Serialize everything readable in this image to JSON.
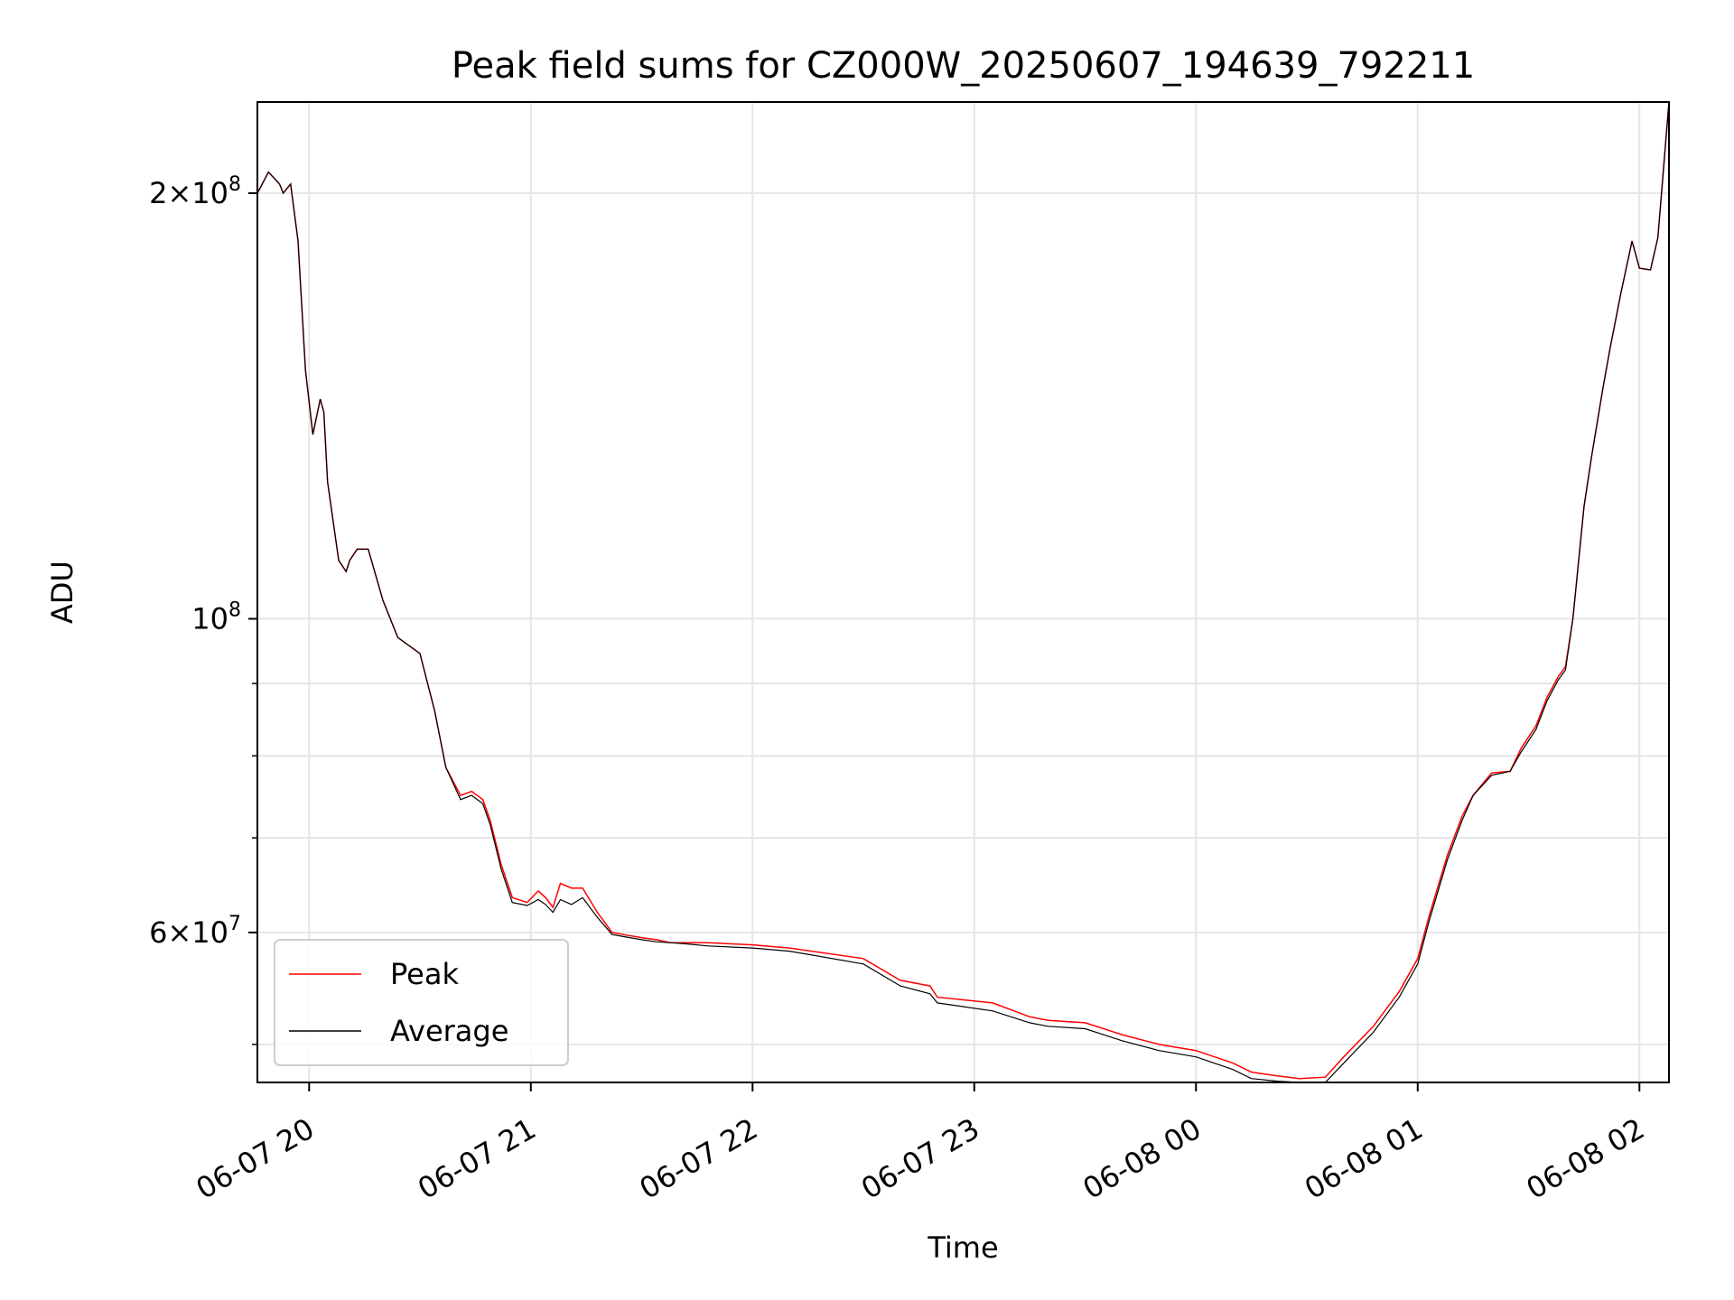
{
  "chart_data": {
    "type": "line",
    "title": "Peak field sums for CZ000W_20250607_194639_792211",
    "xlabel": "Time",
    "ylabel": "ADU",
    "y_scale": "log",
    "grid": true,
    "legend_position": "lower-left",
    "xlim": [
      "2025-06-07 19:46",
      "2025-06-08 02:08"
    ],
    "ylim": [
      47000000,
      232000000
    ],
    "x_ticks": [
      "06-07 20",
      "06-07 21",
      "06-07 22",
      "06-07 23",
      "06-08 00",
      "06-08 01",
      "06-08 02"
    ],
    "y_tick_labels": {
      "major": [
        {
          "value": 200000000,
          "mant": "2",
          "sep": "×",
          "base": "10",
          "exp": "8"
        },
        {
          "value": 100000000,
          "mant": "",
          "sep": "",
          "base": "10",
          "exp": "8"
        },
        {
          "value": 60000000,
          "mant": "6",
          "sep": "×",
          "base": "10",
          "exp": "7"
        }
      ],
      "minor_values": [
        50000000,
        70000000,
        80000000,
        90000000
      ]
    },
    "series": [
      {
        "name": "Peak",
        "color": "#ff0000",
        "x": [
          "2025-06-07 19:46",
          "2025-06-07 19:49",
          "2025-06-07 19:52",
          "2025-06-07 19:53",
          "2025-06-07 19:55",
          "2025-06-07 19:57",
          "2025-06-07 19:59",
          "2025-06-07 20:01",
          "2025-06-07 20:03",
          "2025-06-07 20:04",
          "2025-06-07 20:05",
          "2025-06-07 20:08",
          "2025-06-07 20:10",
          "2025-06-07 20:11",
          "2025-06-07 20:13",
          "2025-06-07 20:16",
          "2025-06-07 20:20",
          "2025-06-07 20:24",
          "2025-06-07 20:30",
          "2025-06-07 20:34",
          "2025-06-07 20:37",
          "2025-06-07 20:41",
          "2025-06-07 20:44",
          "2025-06-07 20:47",
          "2025-06-07 20:49",
          "2025-06-07 20:52",
          "2025-06-07 20:55",
          "2025-06-07 20:59",
          "2025-06-07 21:02",
          "2025-06-07 21:04",
          "2025-06-07 21:06",
          "2025-06-07 21:08",
          "2025-06-07 21:11",
          "2025-06-07 21:14",
          "2025-06-07 21:18",
          "2025-06-07 21:22",
          "2025-06-07 21:25",
          "2025-06-07 21:30",
          "2025-06-07 21:34",
          "2025-06-07 21:38",
          "2025-06-07 21:42",
          "2025-06-07 21:48",
          "2025-06-07 22:00",
          "2025-06-07 22:10",
          "2025-06-07 22:30",
          "2025-06-07 22:40",
          "2025-06-07 22:48",
          "2025-06-07 22:50",
          "2025-06-07 23:05",
          "2025-06-07 23:15",
          "2025-06-07 23:20",
          "2025-06-07 23:30",
          "2025-06-07 23:40",
          "2025-06-07 23:50",
          "2025-06-08 00:00",
          "2025-06-08 00:10",
          "2025-06-08 00:15",
          "2025-06-08 00:22",
          "2025-06-08 00:28",
          "2025-06-08 00:35",
          "2025-06-08 00:40",
          "2025-06-08 00:48",
          "2025-06-08 00:55",
          "2025-06-08 01:00",
          "2025-06-08 01:03",
          "2025-06-08 01:08",
          "2025-06-08 01:12",
          "2025-06-08 01:15",
          "2025-06-08 01:20",
          "2025-06-08 01:25",
          "2025-06-08 01:28",
          "2025-06-08 01:32",
          "2025-06-08 01:35",
          "2025-06-08 01:38",
          "2025-06-08 01:40",
          "2025-06-08 01:42",
          "2025-06-08 01:45",
          "2025-06-08 01:47",
          "2025-06-08 01:50",
          "2025-06-08 01:52",
          "2025-06-08 01:55",
          "2025-06-08 01:58",
          "2025-06-08 02:00",
          "2025-06-08 02:03",
          "2025-06-08 02:05",
          "2025-06-08 02:08"
        ],
        "y": [
          200000000,
          207000000,
          203000000,
          200000000,
          203000000,
          185000000,
          150000000,
          135000000,
          143000000,
          140000000,
          125000000,
          110000000,
          108000000,
          110000000,
          112000000,
          112000000,
          103000000,
          97000000,
          94500000,
          86000000,
          78500000,
          75000000,
          75500000,
          74500000,
          72000000,
          67000000,
          63500000,
          63000000,
          64200000,
          63500000,
          62500000,
          65000000,
          64500000,
          64500000,
          62000000,
          60000000,
          59800000,
          59500000,
          59300000,
          59000000,
          59000000,
          59000000,
          58800000,
          58500000,
          57500000,
          55500000,
          55000000,
          54000000,
          53500000,
          52300000,
          52000000,
          51800000,
          50800000,
          50000000,
          49500000,
          48500000,
          47800000,
          47500000,
          47300000,
          47400000,
          49000000,
          51500000,
          54500000,
          57500000,
          61500000,
          68000000,
          72500000,
          75000000,
          77800000,
          78000000,
          81000000,
          84000000,
          88000000,
          91000000,
          92500000,
          100000000,
          120000000,
          130000000,
          145000000,
          155000000,
          170000000,
          185000000,
          177000000,
          176500000,
          186000000,
          232000000
        ]
      },
      {
        "name": "Average",
        "color": "#000000",
        "x": [
          "2025-06-07 19:46",
          "2025-06-07 19:49",
          "2025-06-07 19:52",
          "2025-06-07 19:53",
          "2025-06-07 19:55",
          "2025-06-07 19:57",
          "2025-06-07 19:59",
          "2025-06-07 20:01",
          "2025-06-07 20:03",
          "2025-06-07 20:04",
          "2025-06-07 20:05",
          "2025-06-07 20:08",
          "2025-06-07 20:10",
          "2025-06-07 20:11",
          "2025-06-07 20:13",
          "2025-06-07 20:16",
          "2025-06-07 20:20",
          "2025-06-07 20:24",
          "2025-06-07 20:30",
          "2025-06-07 20:34",
          "2025-06-07 20:37",
          "2025-06-07 20:41",
          "2025-06-07 20:44",
          "2025-06-07 20:47",
          "2025-06-07 20:49",
          "2025-06-07 20:52",
          "2025-06-07 20:55",
          "2025-06-07 20:59",
          "2025-06-07 21:02",
          "2025-06-07 21:04",
          "2025-06-07 21:06",
          "2025-06-07 21:08",
          "2025-06-07 21:11",
          "2025-06-07 21:14",
          "2025-06-07 21:18",
          "2025-06-07 21:22",
          "2025-06-07 21:25",
          "2025-06-07 21:30",
          "2025-06-07 21:34",
          "2025-06-07 21:38",
          "2025-06-07 21:42",
          "2025-06-07 21:48",
          "2025-06-07 22:00",
          "2025-06-07 22:10",
          "2025-06-07 22:30",
          "2025-06-07 22:40",
          "2025-06-07 22:48",
          "2025-06-07 22:50",
          "2025-06-07 23:05",
          "2025-06-07 23:15",
          "2025-06-07 23:20",
          "2025-06-07 23:30",
          "2025-06-07 23:40",
          "2025-06-07 23:50",
          "2025-06-08 00:00",
          "2025-06-08 00:10",
          "2025-06-08 00:15",
          "2025-06-08 00:22",
          "2025-06-08 00:28",
          "2025-06-08 00:35",
          "2025-06-08 00:40",
          "2025-06-08 00:48",
          "2025-06-08 00:55",
          "2025-06-08 01:00",
          "2025-06-08 01:03",
          "2025-06-08 01:08",
          "2025-06-08 01:12",
          "2025-06-08 01:15",
          "2025-06-08 01:20",
          "2025-06-08 01:25",
          "2025-06-08 01:28",
          "2025-06-08 01:32",
          "2025-06-08 01:35",
          "2025-06-08 01:38",
          "2025-06-08 01:40",
          "2025-06-08 01:42",
          "2025-06-08 01:45",
          "2025-06-08 01:47",
          "2025-06-08 01:50",
          "2025-06-08 01:52",
          "2025-06-08 01:55",
          "2025-06-08 01:58",
          "2025-06-08 02:00",
          "2025-06-08 02:03",
          "2025-06-08 02:05",
          "2025-06-08 02:08"
        ],
        "y": [
          200000000,
          207000000,
          203000000,
          200000000,
          203000000,
          185000000,
          150000000,
          135000000,
          143000000,
          140000000,
          125000000,
          110000000,
          108000000,
          110000000,
          112000000,
          112000000,
          103000000,
          97000000,
          94500000,
          86000000,
          78500000,
          74500000,
          75000000,
          74000000,
          71500000,
          66500000,
          63000000,
          62700000,
          63300000,
          62800000,
          62000000,
          63300000,
          62800000,
          63500000,
          61500000,
          59800000,
          59600000,
          59300000,
          59100000,
          59000000,
          58900000,
          58700000,
          58500000,
          58200000,
          57000000,
          55000000,
          54300000,
          53500000,
          52800000,
          51800000,
          51500000,
          51300000,
          50300000,
          49500000,
          49000000,
          48000000,
          47300000,
          47100000,
          47000000,
          47000000,
          48500000,
          51000000,
          54000000,
          57000000,
          61000000,
          67500000,
          72000000,
          75000000,
          77500000,
          78000000,
          80500000,
          83500000,
          87500000,
          90500000,
          92000000,
          100000000,
          120000000,
          130000000,
          145000000,
          155000000,
          170000000,
          185000000,
          177000000,
          176500000,
          186000000,
          232000000
        ]
      }
    ]
  }
}
